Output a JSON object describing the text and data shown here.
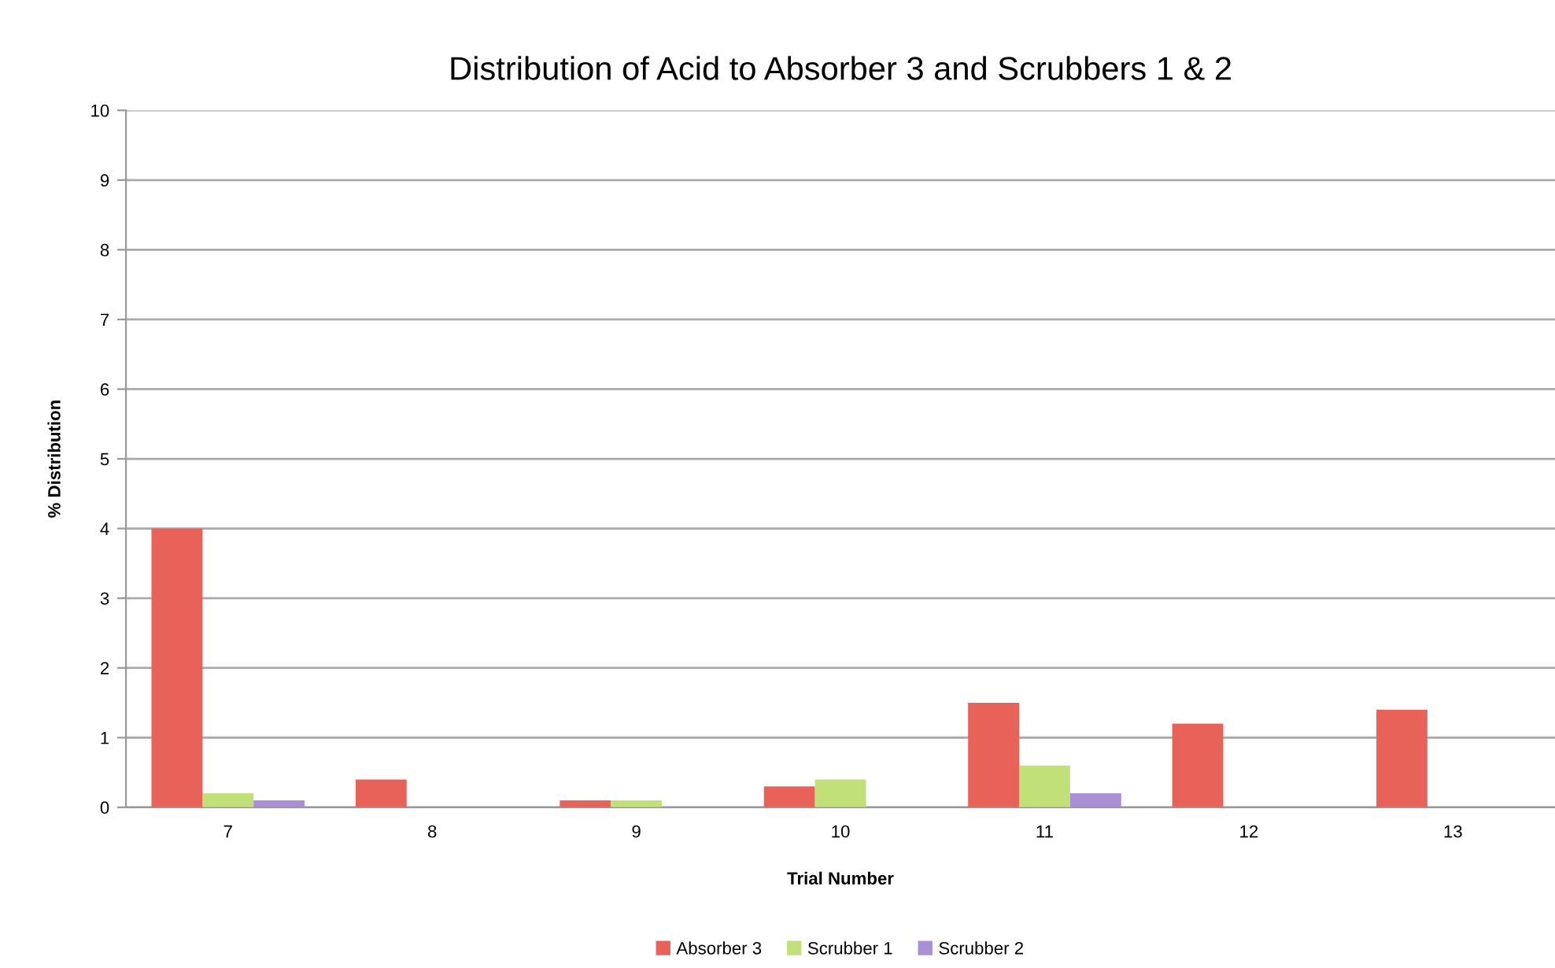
{
  "chart_data": {
    "type": "bar",
    "title": "Distribution of Acid to Absorber 3 and Scrubbers 1 & 2",
    "xlabel": "Trial Number",
    "ylabel": "% Distribution",
    "categories": [
      "7",
      "8",
      "9",
      "10",
      "11",
      "12",
      "13"
    ],
    "series": [
      {
        "name": "Absorber 3",
        "color": "#e8625a",
        "values": [
          4.0,
          0.4,
          0.1,
          0.3,
          1.5,
          1.2,
          1.4
        ]
      },
      {
        "name": "Scrubber 1",
        "color": "#c2e07a",
        "values": [
          0.2,
          0,
          0.1,
          0.4,
          0.6,
          0,
          0
        ]
      },
      {
        "name": "Scrubber 2",
        "color": "#a98fd4",
        "values": [
          0.1,
          0,
          0,
          0,
          0.2,
          0,
          0
        ]
      }
    ],
    "ylim": [
      0,
      10
    ],
    "yticks": [
      0,
      1,
      2,
      3,
      4,
      5,
      6,
      7,
      8,
      9,
      10
    ],
    "grid": "y",
    "legend": "bottom"
  }
}
